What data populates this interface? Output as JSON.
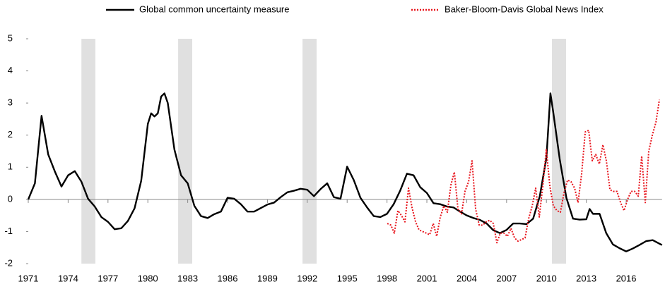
{
  "chart_data": {
    "type": "line",
    "xlim": [
      1971,
      2018.7
    ],
    "ylim": [
      -2,
      5
    ],
    "xticks": [
      1971,
      1974,
      1977,
      1980,
      1983,
      1986,
      1989,
      1992,
      1995,
      1998,
      2001,
      2004,
      2007,
      2010,
      2013,
      2016
    ],
    "yticks": [
      -2,
      -1,
      0,
      1,
      2,
      3,
      4,
      5
    ],
    "shaded_periods": [
      [
        1975.0,
        1976.05
      ],
      [
        1982.28,
        1983.34
      ],
      [
        1991.64,
        1992.7
      ],
      [
        2010.41,
        2011.48
      ]
    ],
    "shade_color": "#e0e0e0",
    "series": [
      {
        "name": "Global common uncertainty measure",
        "color": "#000000",
        "style": "solid",
        "x": [
          1971.0,
          1971.5,
          1972.0,
          1972.5,
          1973.0,
          1973.5,
          1974.0,
          1974.5,
          1975.0,
          1975.5,
          1976.0,
          1976.5,
          1977.0,
          1977.5,
          1978.0,
          1978.5,
          1979.0,
          1979.5,
          1980.0,
          1980.25,
          1980.5,
          1980.75,
          1981.0,
          1981.25,
          1981.5,
          1982.0,
          1982.5,
          1983.0,
          1983.5,
          1984.0,
          1984.5,
          1985.0,
          1985.5,
          1986.0,
          1986.5,
          1987.0,
          1987.5,
          1988.0,
          1988.5,
          1989.0,
          1989.5,
          1990.0,
          1990.5,
          1991.0,
          1991.5,
          1992.0,
          1992.5,
          1993.0,
          1993.5,
          1994.0,
          1994.5,
          1995.0,
          1995.5,
          1996.0,
          1996.5,
          1997.0,
          1997.5,
          1998.0,
          1998.5,
          1999.0,
          1999.5,
          2000.0,
          2000.5,
          2001.0,
          2001.5,
          2002.0,
          2002.5,
          2003.0,
          2003.5,
          2004.0,
          2004.5,
          2005.0,
          2005.5,
          2006.0,
          2006.5,
          2007.0,
          2007.5,
          2008.0,
          2008.5,
          2009.0,
          2009.5,
          2010.0,
          2010.3,
          2010.5,
          2011.0,
          2011.5,
          2012.0,
          2012.5,
          2013.0,
          2013.25,
          2013.5,
          2014.0,
          2014.5,
          2015.0,
          2015.5,
          2016.0,
          2016.5,
          2017.0,
          2017.5,
          2018.0,
          2018.5,
          2018.7
        ],
        "values": [
          0,
          0.5,
          2.6,
          1.4,
          0.87,
          0.4,
          0.75,
          0.88,
          0.55,
          0.02,
          -0.22,
          -0.55,
          -0.7,
          -0.93,
          -0.9,
          -0.67,
          -0.28,
          0.58,
          2.35,
          2.68,
          2.58,
          2.68,
          3.2,
          3.3,
          3.0,
          1.55,
          0.75,
          0.5,
          -0.2,
          -0.52,
          -0.58,
          -0.46,
          -0.38,
          0.05,
          0.02,
          -0.15,
          -0.38,
          -0.38,
          -0.27,
          -0.16,
          -0.1,
          0.07,
          0.22,
          0.27,
          0.33,
          0.3,
          0.1,
          0.32,
          0.5,
          0.07,
          0.02,
          1.02,
          0.6,
          0.05,
          -0.25,
          -0.52,
          -0.55,
          -0.45,
          -0.15,
          0.28,
          0.8,
          0.75,
          0.38,
          0.2,
          -0.12,
          -0.15,
          -0.22,
          -0.25,
          -0.38,
          -0.5,
          -0.58,
          -0.64,
          -0.75,
          -0.96,
          -1.05,
          -0.95,
          -0.75,
          -0.75,
          -0.77,
          -0.6,
          0.1,
          1.3,
          3.3,
          2.75,
          1.25,
          0.05,
          -0.6,
          -0.63,
          -0.62,
          -0.3,
          -0.45,
          -0.45,
          -1.05,
          -1.4,
          -1.52,
          -1.62,
          -1.53,
          -1.42,
          -1.3,
          -1.27,
          -1.38,
          -1.42
        ]
      },
      {
        "name": "Baker-Bloom-Davis Global News Index",
        "color": "#e8141c",
        "style": "dotted",
        "x": [
          1998.02,
          1998.29,
          1998.55,
          1998.82,
          1999.09,
          1999.35,
          1999.62,
          1999.88,
          2000.15,
          2000.41,
          2000.68,
          2000.95,
          2001.21,
          2001.48,
          2001.74,
          2002.01,
          2002.28,
          2002.54,
          2002.81,
          2003.07,
          2003.34,
          2003.61,
          2003.87,
          2004.14,
          2004.4,
          2004.67,
          2004.94,
          2005.2,
          2005.47,
          2005.73,
          2006.0,
          2006.27,
          2006.53,
          2006.8,
          2007.06,
          2007.33,
          2007.6,
          2007.86,
          2008.13,
          2008.39,
          2008.66,
          2008.93,
          2009.19,
          2009.46,
          2009.72,
          2009.99,
          2010.26,
          2010.52,
          2010.79,
          2011.05,
          2011.32,
          2011.59,
          2011.85,
          2012.12,
          2012.38,
          2012.65,
          2012.92,
          2013.18,
          2013.45,
          2013.71,
          2013.98,
          2014.25,
          2014.51,
          2014.78,
          2015.04,
          2015.31,
          2015.58,
          2015.84,
          2016.11,
          2016.37,
          2016.64,
          2016.91,
          2017.17,
          2017.44,
          2017.7,
          2017.97,
          2018.24,
          2018.5
        ],
        "values": [
          -0.75,
          -0.8,
          -1.05,
          -0.35,
          -0.5,
          -0.7,
          0.35,
          -0.25,
          -0.7,
          -0.95,
          -1.0,
          -1.05,
          -1.1,
          -0.75,
          -1.15,
          -0.55,
          -0.2,
          -0.4,
          0.45,
          0.85,
          -0.3,
          -0.45,
          0.25,
          0.55,
          1.2,
          -0.3,
          -0.8,
          -0.8,
          -0.7,
          -0.65,
          -0.75,
          -1.35,
          -1.05,
          -1.05,
          -1.15,
          -0.9,
          -1.2,
          -1.3,
          -1.25,
          -1.2,
          -0.6,
          -0.2,
          0.35,
          -0.55,
          0.4,
          1.55,
          0.4,
          -0.2,
          -0.35,
          -0.4,
          0.2,
          0.6,
          0.55,
          0.35,
          -0.1,
          0.8,
          2.1,
          2.15,
          1.2,
          1.4,
          1.1,
          1.7,
          1.2,
          0.3,
          0.25,
          0.25,
          -0.1,
          -0.35,
          0.0,
          0.25,
          0.25,
          0.1,
          1.35,
          -0.1,
          1.5,
          2.0,
          2.4,
          3.1
        ]
      }
    ]
  }
}
